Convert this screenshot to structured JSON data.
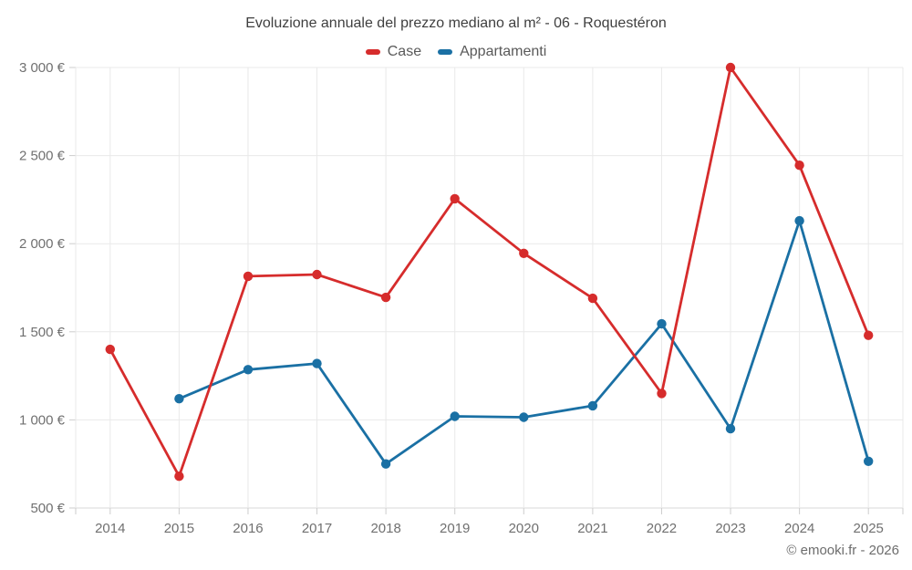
{
  "header": {
    "title": "Evoluzione annuale del prezzo mediano al m² - 06 - Roquestéron"
  },
  "legend": {
    "items": [
      {
        "label": "Case",
        "color": "#d62c2c"
      },
      {
        "label": "Appartamenti",
        "color": "#1a70a4"
      }
    ]
  },
  "footer": {
    "credit": "© emooki.fr - 2026"
  },
  "chart_data": {
    "type": "line",
    "title": "Evoluzione annuale del prezzo mediano al m² - 06 - Roquestéron",
    "x_categories": [
      "2014",
      "2015",
      "2016",
      "2017",
      "2018",
      "2019",
      "2020",
      "2021",
      "2022",
      "2023",
      "2024",
      "2025"
    ],
    "y_axis": {
      "min": 500,
      "max": 3000,
      "tick_step": 500,
      "tick_labels": [
        "500 €",
        "1 000 €",
        "1 500 €",
        "2 000 €",
        "2 500 €",
        "3 000 €"
      ],
      "unit": "€"
    },
    "grid": true,
    "legend_position": "top",
    "series": [
      {
        "name": "Case",
        "color": "#d62c2c",
        "values": [
          1400,
          680,
          1815,
          1825,
          1695,
          2255,
          1945,
          1690,
          1150,
          3000,
          2445,
          1480
        ]
      },
      {
        "name": "Appartamenti",
        "color": "#1a70a4",
        "values": [
          null,
          1120,
          1285,
          1320,
          750,
          1020,
          1015,
          1080,
          1545,
          950,
          2130,
          765
        ]
      }
    ]
  }
}
